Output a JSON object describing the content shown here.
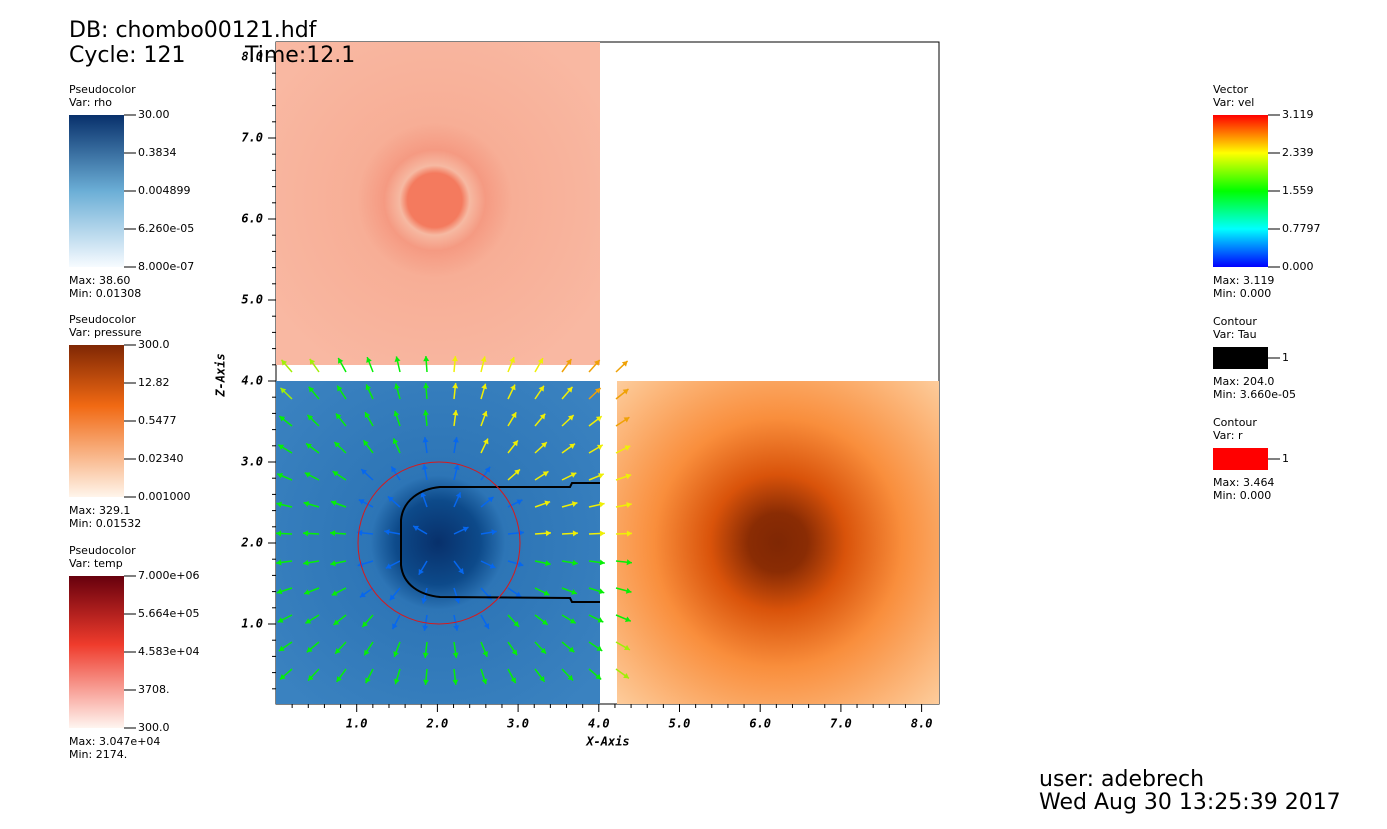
{
  "header": {
    "db": "DB: chombo00121.hdf",
    "cycle": "Cycle: 121",
    "time": "Time:12.1"
  },
  "legends": [
    {
      "plot": "Pseudocolor",
      "var": "Var: rho",
      "ticks": [
        "30.00",
        "0.3834",
        "0.004899",
        "6.260e-05",
        "8.000e-07"
      ],
      "max": "Max:  38.60",
      "min": "Min:  0.01308"
    },
    {
      "plot": "Pseudocolor",
      "var": "Var: pressure",
      "ticks": [
        "300.0",
        "12.82",
        "0.5477",
        "0.02340",
        "0.001000"
      ],
      "max": "Max:  329.1",
      "min": "Min:  0.01532"
    },
    {
      "plot": "Pseudocolor",
      "var": "Var: temp",
      "ticks": [
        "7.000e+06",
        "5.664e+05",
        "4.583e+04",
        "3708.",
        "300.0"
      ],
      "max": "Max:  3.047e+04",
      "min": "Min:  2174."
    },
    {
      "plot": "Vector",
      "var": "Var: vel",
      "ticks": [
        "3.119",
        "2.339",
        "1.559",
        "0.7797",
        "0.000"
      ],
      "max": "Max:  3.119",
      "min": "Min:  0.000"
    }
  ],
  "contours": [
    {
      "plot": "Contour",
      "var": "Var: Tau",
      "level": "1",
      "max": "Max:  204.0",
      "min": "Min:  3.660e-05"
    },
    {
      "plot": "Contour",
      "var": "Var: r",
      "level": "1",
      "max": "Max:  3.464",
      "min": "Min:  0.000"
    }
  ],
  "axes": {
    "x": {
      "title": "X-Axis",
      "ticks": [
        "1.0",
        "2.0",
        "3.0",
        "4.0",
        "5.0",
        "6.0",
        "7.0",
        "8.0"
      ]
    },
    "y": {
      "title": "Z-Axis",
      "ticks": [
        "1.0",
        "2.0",
        "3.0",
        "4.0",
        "5.0",
        "6.0",
        "7.0",
        "8.0"
      ]
    }
  },
  "footer": {
    "user": "user: adebrech",
    "date": "Wed Aug 30 13:25:39 2017"
  }
}
